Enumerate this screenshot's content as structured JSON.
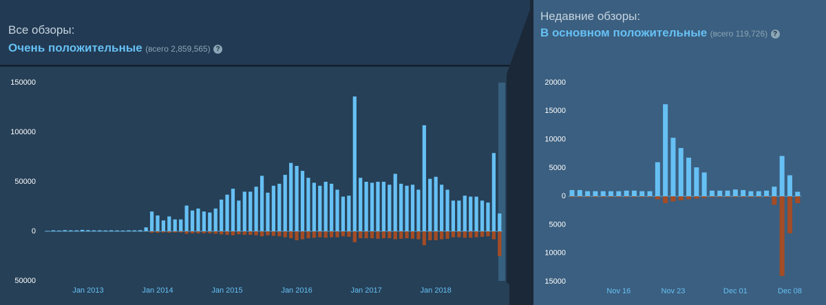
{
  "chart_data": [
    {
      "type": "bar",
      "title": "Все обзоры:",
      "summary": "Очень положительные",
      "total": "(всего 2,859,565)",
      "categories": [
        null,
        null,
        null,
        null,
        null,
        null,
        null,
        "Jan 2013",
        null,
        null,
        null,
        null,
        null,
        null,
        null,
        null,
        null,
        null,
        null,
        "Jan 2014",
        null,
        null,
        null,
        null,
        null,
        null,
        null,
        null,
        null,
        null,
        null,
        "Jan 2015",
        null,
        null,
        null,
        null,
        null,
        null,
        null,
        null,
        null,
        null,
        null,
        "Jan 2016",
        null,
        null,
        null,
        null,
        null,
        null,
        null,
        null,
        null,
        null,
        null,
        "Jan 2017",
        null,
        null,
        null,
        null,
        null,
        null,
        null,
        null,
        null,
        null,
        null,
        "Jan 2018",
        null,
        null,
        null,
        null,
        null,
        null,
        null,
        null,
        null,
        null,
        null
      ],
      "series": [
        {
          "color": "#66c0f4",
          "values": [
            500,
            1000,
            800,
            1200,
            1000,
            1000,
            1500,
            1200,
            1000,
            1000,
            900,
            1000,
            900,
            800,
            1000,
            1000,
            1200,
            4000,
            20000,
            16000,
            11000,
            15000,
            12000,
            12000,
            26000,
            21000,
            23000,
            20000,
            19000,
            23000,
            32000,
            37000,
            43000,
            31000,
            40000,
            40000,
            45000,
            56000,
            39000,
            46000,
            48000,
            57000,
            69000,
            66000,
            61000,
            54000,
            49000,
            46000,
            50000,
            48000,
            42000,
            35000,
            36000,
            136000,
            54000,
            50000,
            49000,
            50000,
            50000,
            47000,
            58000,
            48000,
            46000,
            47000,
            42000,
            107000,
            53000,
            55000,
            47000,
            42000,
            31000,
            31000,
            36000,
            35000,
            35000,
            31000,
            29000,
            79000,
            18000
          ]
        },
        {
          "color": "#a34c25",
          "values": [
            -100,
            -100,
            -100,
            -100,
            -100,
            -100,
            -100,
            -100,
            -100,
            -100,
            -100,
            -100,
            -100,
            -100,
            -100,
            -100,
            -100,
            -300,
            -1500,
            -1500,
            -1200,
            -1500,
            -1200,
            -1200,
            -2500,
            -2000,
            -2000,
            -2000,
            -2000,
            -2500,
            -3000,
            -3500,
            -4000,
            -3000,
            -3500,
            -3500,
            -4000,
            -5000,
            -4000,
            -4500,
            -5000,
            -6000,
            -7000,
            -9000,
            -8000,
            -7000,
            -6500,
            -6000,
            -6500,
            -6000,
            -6000,
            -5000,
            -5500,
            -11000,
            -7000,
            -7000,
            -7000,
            -7500,
            -7000,
            -7000,
            -8000,
            -7500,
            -7000,
            -7500,
            -8000,
            -14000,
            -9000,
            -9000,
            -8000,
            -7500,
            -6000,
            -6000,
            -6500,
            -6500,
            -6000,
            -5500,
            -5000,
            -8000,
            -25000
          ]
        }
      ],
      "ylim": [
        -50000,
        150000
      ],
      "yticks": [
        150000,
        100000,
        50000,
        0,
        {
          "value": -50000,
          "label": "50000"
        }
      ]
    },
    {
      "type": "bar",
      "title": "Недавние обзоры:",
      "summary": "В основном положительные",
      "total": "(всего 119,726)",
      "categories": [
        null,
        null,
        null,
        null,
        null,
        null,
        "Nov 16",
        null,
        null,
        null,
        null,
        null,
        null,
        "Nov 23",
        null,
        null,
        null,
        null,
        null,
        null,
        null,
        "Dec 01",
        null,
        null,
        null,
        null,
        null,
        null,
        "Dec 08",
        null
      ],
      "series": [
        {
          "color": "#66c0f4",
          "values": [
            1100,
            1100,
            900,
            900,
            900,
            900,
            900,
            1000,
            1000,
            900,
            900,
            6000,
            16200,
            10300,
            8500,
            6800,
            5100,
            4200,
            1000,
            1000,
            1000,
            1200,
            1100,
            900,
            900,
            1000,
            1700,
            7100,
            3700,
            800
          ]
        },
        {
          "color": "#a34c25",
          "values": [
            -150,
            -150,
            -150,
            -150,
            -150,
            -150,
            -150,
            -150,
            -150,
            -150,
            -150,
            -500,
            -1200,
            -900,
            -700,
            -500,
            -400,
            -300,
            -150,
            -150,
            -150,
            -150,
            -150,
            -150,
            -150,
            -150,
            -1500,
            -14000,
            -6500,
            -1200
          ]
        }
      ],
      "ylim": [
        -15000,
        20000
      ],
      "yticks": [
        20000,
        15000,
        10000,
        5000,
        0,
        {
          "value": -5000,
          "label": "5000"
        },
        {
          "value": -10000,
          "label": "10000"
        },
        {
          "value": -15000,
          "label": "15000"
        }
      ]
    }
  ]
}
